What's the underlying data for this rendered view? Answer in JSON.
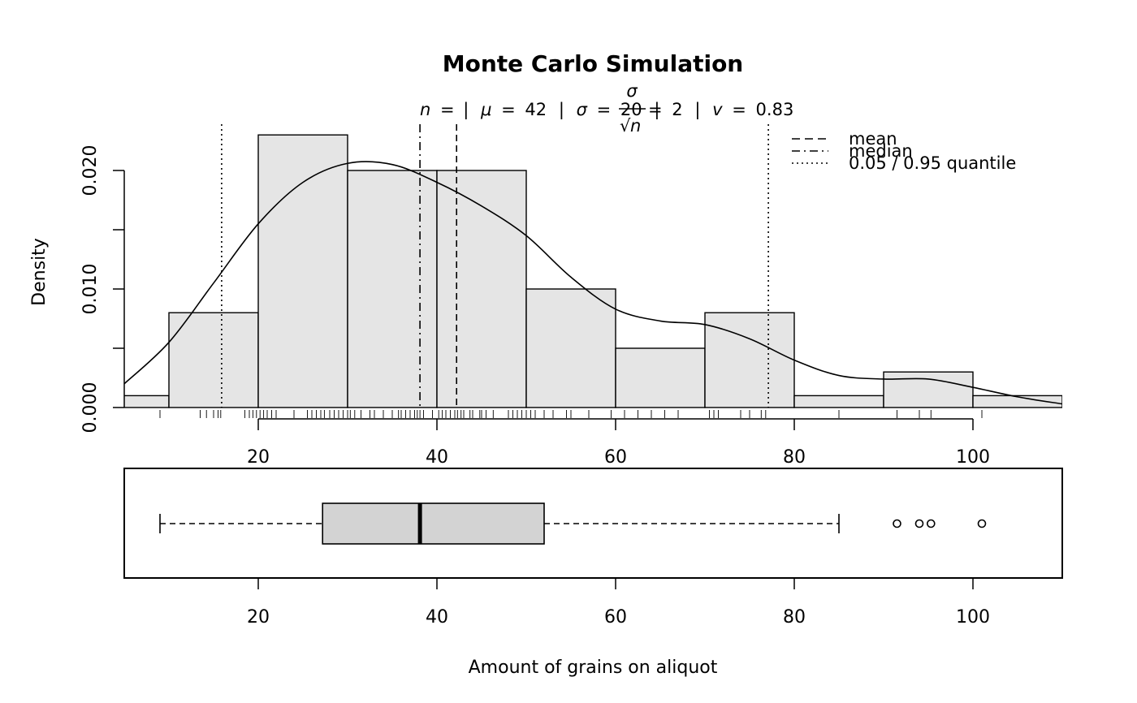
{
  "chart_data": [
    {
      "type": "histogram",
      "title": "Monte Carlo Simulation",
      "ylabel": "Density",
      "xlim": [
        5,
        110
      ],
      "ylim": [
        0,
        0.022
      ],
      "x_ticks": [
        "20",
        "40",
        "60",
        "80",
        "100"
      ],
      "y_ticks": [
        "0.000",
        "0.010",
        "0.020"
      ],
      "bins": [
        {
          "from": 0,
          "to": 10,
          "density": 0.001
        },
        {
          "from": 10,
          "to": 20,
          "density": 0.008
        },
        {
          "from": 20,
          "to": 30,
          "density": 0.023
        },
        {
          "from": 30,
          "to": 40,
          "density": 0.02
        },
        {
          "from": 40,
          "to": 50,
          "density": 0.02
        },
        {
          "from": 50,
          "to": 60,
          "density": 0.01
        },
        {
          "from": 60,
          "to": 70,
          "density": 0.005
        },
        {
          "from": 70,
          "to": 80,
          "density": 0.008
        },
        {
          "from": 80,
          "to": 90,
          "density": 0.001
        },
        {
          "from": 90,
          "to": 100,
          "density": 0.003
        },
        {
          "from": 100,
          "to": 110,
          "density": 0.001
        }
      ],
      "density_curve": {
        "x": [
          5,
          10,
          15,
          20,
          25,
          30,
          35,
          40,
          45,
          50,
          55,
          60,
          65,
          70,
          75,
          80,
          85,
          90,
          95,
          100,
          105,
          110
        ],
        "y": [
          0.002,
          0.0055,
          0.0105,
          0.0155,
          0.019,
          0.0206,
          0.0205,
          0.019,
          0.017,
          0.0145,
          0.011,
          0.0083,
          0.0073,
          0.007,
          0.0058,
          0.004,
          0.0027,
          0.0024,
          0.0024,
          0.0017,
          0.0009,
          0.0003
        ]
      },
      "vlines": {
        "mean": 42.2,
        "median": 38.1,
        "q05": 15.9,
        "q95": 77.1
      },
      "rug": [
        9,
        13.5,
        14.2,
        15,
        15.5,
        15.8,
        18.5,
        19,
        19.4,
        19.8,
        20.2,
        20.6,
        21,
        21.5,
        22,
        24,
        25.5,
        26,
        26.5,
        27,
        27.4,
        28,
        28.5,
        29,
        29.5,
        30,
        30.3,
        30.8,
        31.5,
        32.5,
        33,
        34,
        35,
        35.7,
        36,
        36.5,
        37,
        37.5,
        37.8,
        38.1,
        38.5,
        39.5,
        40.2,
        40.6,
        41,
        41.5,
        42,
        42.3,
        42.7,
        43,
        43.7,
        44,
        44.8,
        45,
        45.5,
        46.3,
        48,
        48.5,
        49,
        49.5,
        50,
        50.5,
        51,
        52,
        53,
        54.5,
        55,
        57,
        59.5,
        61,
        62.5,
        64,
        65.5,
        67,
        70.5,
        71,
        71.5,
        74,
        75,
        76.3,
        76.8,
        85,
        91.5,
        94,
        95.3,
        101
      ],
      "stats_text": {
        "n_label": "n",
        "n_value": "",
        "mu_label": "μ",
        "mu_value": "42",
        "sigma_label": "σ",
        "sigma_value": "20",
        "se_numer": "σ",
        "se_denom": "n",
        "se_value": "2",
        "v_label": "v",
        "v_value": "0.83"
      },
      "legend": {
        "placement": "top-right",
        "entries": [
          {
            "label": "mean",
            "linetype": "dashed"
          },
          {
            "label": "median",
            "linetype": "dotdash"
          },
          {
            "label": "0.05 / 0.95 quantile",
            "linetype": "dotted"
          }
        ]
      }
    },
    {
      "type": "boxplot",
      "xlabel": "Amount of grains on aliquot",
      "xlim": [
        5,
        110
      ],
      "x_ticks": [
        "20",
        "40",
        "60",
        "80",
        "100"
      ],
      "box": {
        "whisker_low": 9,
        "q1": 27.2,
        "median": 38.1,
        "q3": 52,
        "whisker_high": 85,
        "outliers": [
          91.5,
          94,
          95.3,
          101
        ]
      },
      "fill": "#d3d3d3"
    }
  ]
}
